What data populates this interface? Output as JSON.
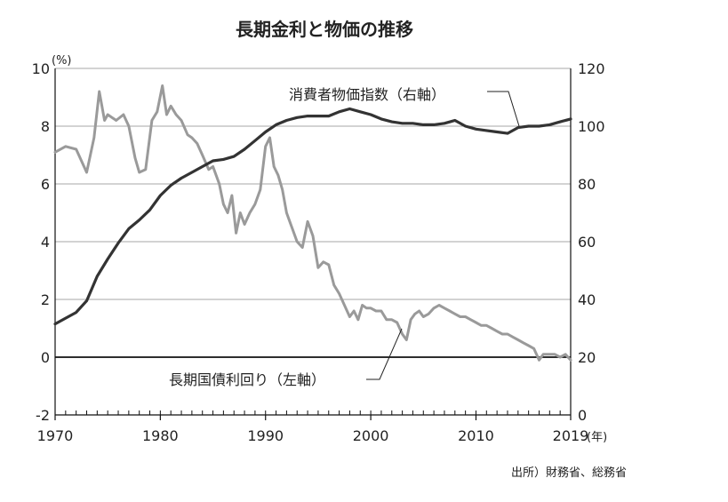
{
  "chart_data": {
    "type": "line",
    "title": "長期金利と物価の推移",
    "source": "出所）財務省、総務省",
    "x_axis": {
      "range": [
        1970,
        2019
      ],
      "ticks": [
        1970,
        1980,
        1990,
        2000,
        2010,
        2019
      ],
      "tick_labels": [
        "1970",
        "1980",
        "1990",
        "2000",
        "2010",
        "2019"
      ],
      "unit": "(年)"
    },
    "y_left": {
      "range": [
        -2,
        10
      ],
      "ticks": [
        -2,
        0,
        2,
        4,
        6,
        8,
        10
      ],
      "tick_labels": [
        "-2",
        "0",
        "2",
        "4",
        "6",
        "8",
        "10"
      ],
      "unit": "(%)"
    },
    "y_right": {
      "range": [
        0,
        120
      ],
      "ticks": [
        0,
        20,
        40,
        60,
        80,
        100,
        120
      ],
      "tick_labels": [
        "0",
        "20",
        "40",
        "60",
        "80",
        "100",
        "120"
      ]
    },
    "grid": true,
    "series": [
      {
        "name": "消費者物価指数（右軸）",
        "axis": "right",
        "color": "#333333",
        "x": [
          1970,
          1971,
          1972,
          1973,
          1974,
          1975,
          1976,
          1977,
          1978,
          1979,
          1980,
          1981,
          1982,
          1983,
          1984,
          1985,
          1986,
          1987,
          1988,
          1989,
          1990,
          1991,
          1992,
          1993,
          1994,
          1995,
          1996,
          1997,
          1998,
          1999,
          2000,
          2001,
          2002,
          2003,
          2004,
          2005,
          2006,
          2007,
          2008,
          2009,
          2010,
          2011,
          2012,
          2013,
          2014,
          2015,
          2016,
          2017,
          2018,
          2019
        ],
        "values": [
          31.5,
          33.5,
          35.5,
          39.5,
          48,
          54,
          59.5,
          64.5,
          67.5,
          71,
          76,
          79.5,
          82,
          84,
          86,
          88,
          88.5,
          89.5,
          92,
          95,
          98,
          100.5,
          102,
          103,
          103.5,
          103.5,
          103.5,
          105,
          106,
          105,
          104,
          102.5,
          101.5,
          101,
          101,
          100.5,
          100.5,
          101,
          102,
          100,
          99,
          98.5,
          98,
          97.5,
          99.5,
          100,
          100,
          100.5,
          101.5,
          102.5
        ]
      },
      {
        "name": "長期国債利回り（左軸）",
        "axis": "left",
        "color": "#9a9a9a",
        "x": [
          1970,
          1971,
          1972,
          1973,
          1973.7,
          1974.2,
          1974.7,
          1975,
          1975.8,
          1976.5,
          1977,
          1977.6,
          1978,
          1978.6,
          1979.2,
          1979.7,
          1980.2,
          1980.6,
          1981,
          1981.5,
          1982,
          1982.6,
          1983,
          1983.5,
          1984,
          1984.6,
          1985,
          1985.6,
          1986,
          1986.4,
          1986.8,
          1987.2,
          1987.6,
          1988,
          1988.5,
          1989,
          1989.5,
          1990,
          1990.4,
          1990.8,
          1991.2,
          1991.6,
          1992,
          1992.5,
          1993,
          1993.5,
          1994,
          1994.5,
          1995,
          1995.5,
          1996,
          1996.5,
          1997,
          1997.5,
          1998,
          1998.4,
          1998.8,
          1999.2,
          1999.6,
          2000,
          2000.5,
          2001,
          2001.5,
          2002,
          2002.5,
          2003,
          2003.4,
          2003.8,
          2004.2,
          2004.6,
          2005,
          2005.5,
          2006,
          2006.5,
          2007,
          2007.5,
          2008,
          2008.5,
          2009,
          2009.5,
          2010,
          2010.5,
          2011,
          2011.5,
          2012,
          2012.5,
          2013,
          2013.5,
          2014,
          2014.5,
          2015,
          2015.5,
          2016,
          2016.4,
          2016.8,
          2017,
          2017.5,
          2018,
          2018.5,
          2019
        ],
        "values": [
          7.1,
          7.3,
          7.2,
          6.4,
          7.6,
          9.2,
          8.2,
          8.4,
          8.2,
          8.4,
          8.0,
          6.9,
          6.4,
          6.5,
          8.2,
          8.5,
          9.4,
          8.4,
          8.7,
          8.4,
          8.2,
          7.7,
          7.6,
          7.4,
          7.0,
          6.5,
          6.6,
          6.0,
          5.3,
          5.0,
          5.6,
          4.3,
          5.0,
          4.6,
          5.0,
          5.3,
          5.8,
          7.3,
          7.6,
          6.6,
          6.3,
          5.8,
          5.0,
          4.5,
          4.0,
          3.8,
          4.7,
          4.2,
          3.1,
          3.3,
          3.2,
          2.5,
          2.2,
          1.8,
          1.4,
          1.6,
          1.3,
          1.8,
          1.7,
          1.7,
          1.6,
          1.6,
          1.3,
          1.3,
          1.2,
          0.8,
          0.6,
          1.3,
          1.5,
          1.6,
          1.4,
          1.5,
          1.7,
          1.8,
          1.7,
          1.6,
          1.5,
          1.4,
          1.4,
          1.3,
          1.2,
          1.1,
          1.1,
          1.0,
          0.9,
          0.8,
          0.8,
          0.7,
          0.6,
          0.5,
          0.4,
          0.3,
          -0.1,
          0.1,
          0.1,
          0.1,
          0.1,
          0.0,
          0.1,
          -0.1
        ]
      }
    ]
  }
}
